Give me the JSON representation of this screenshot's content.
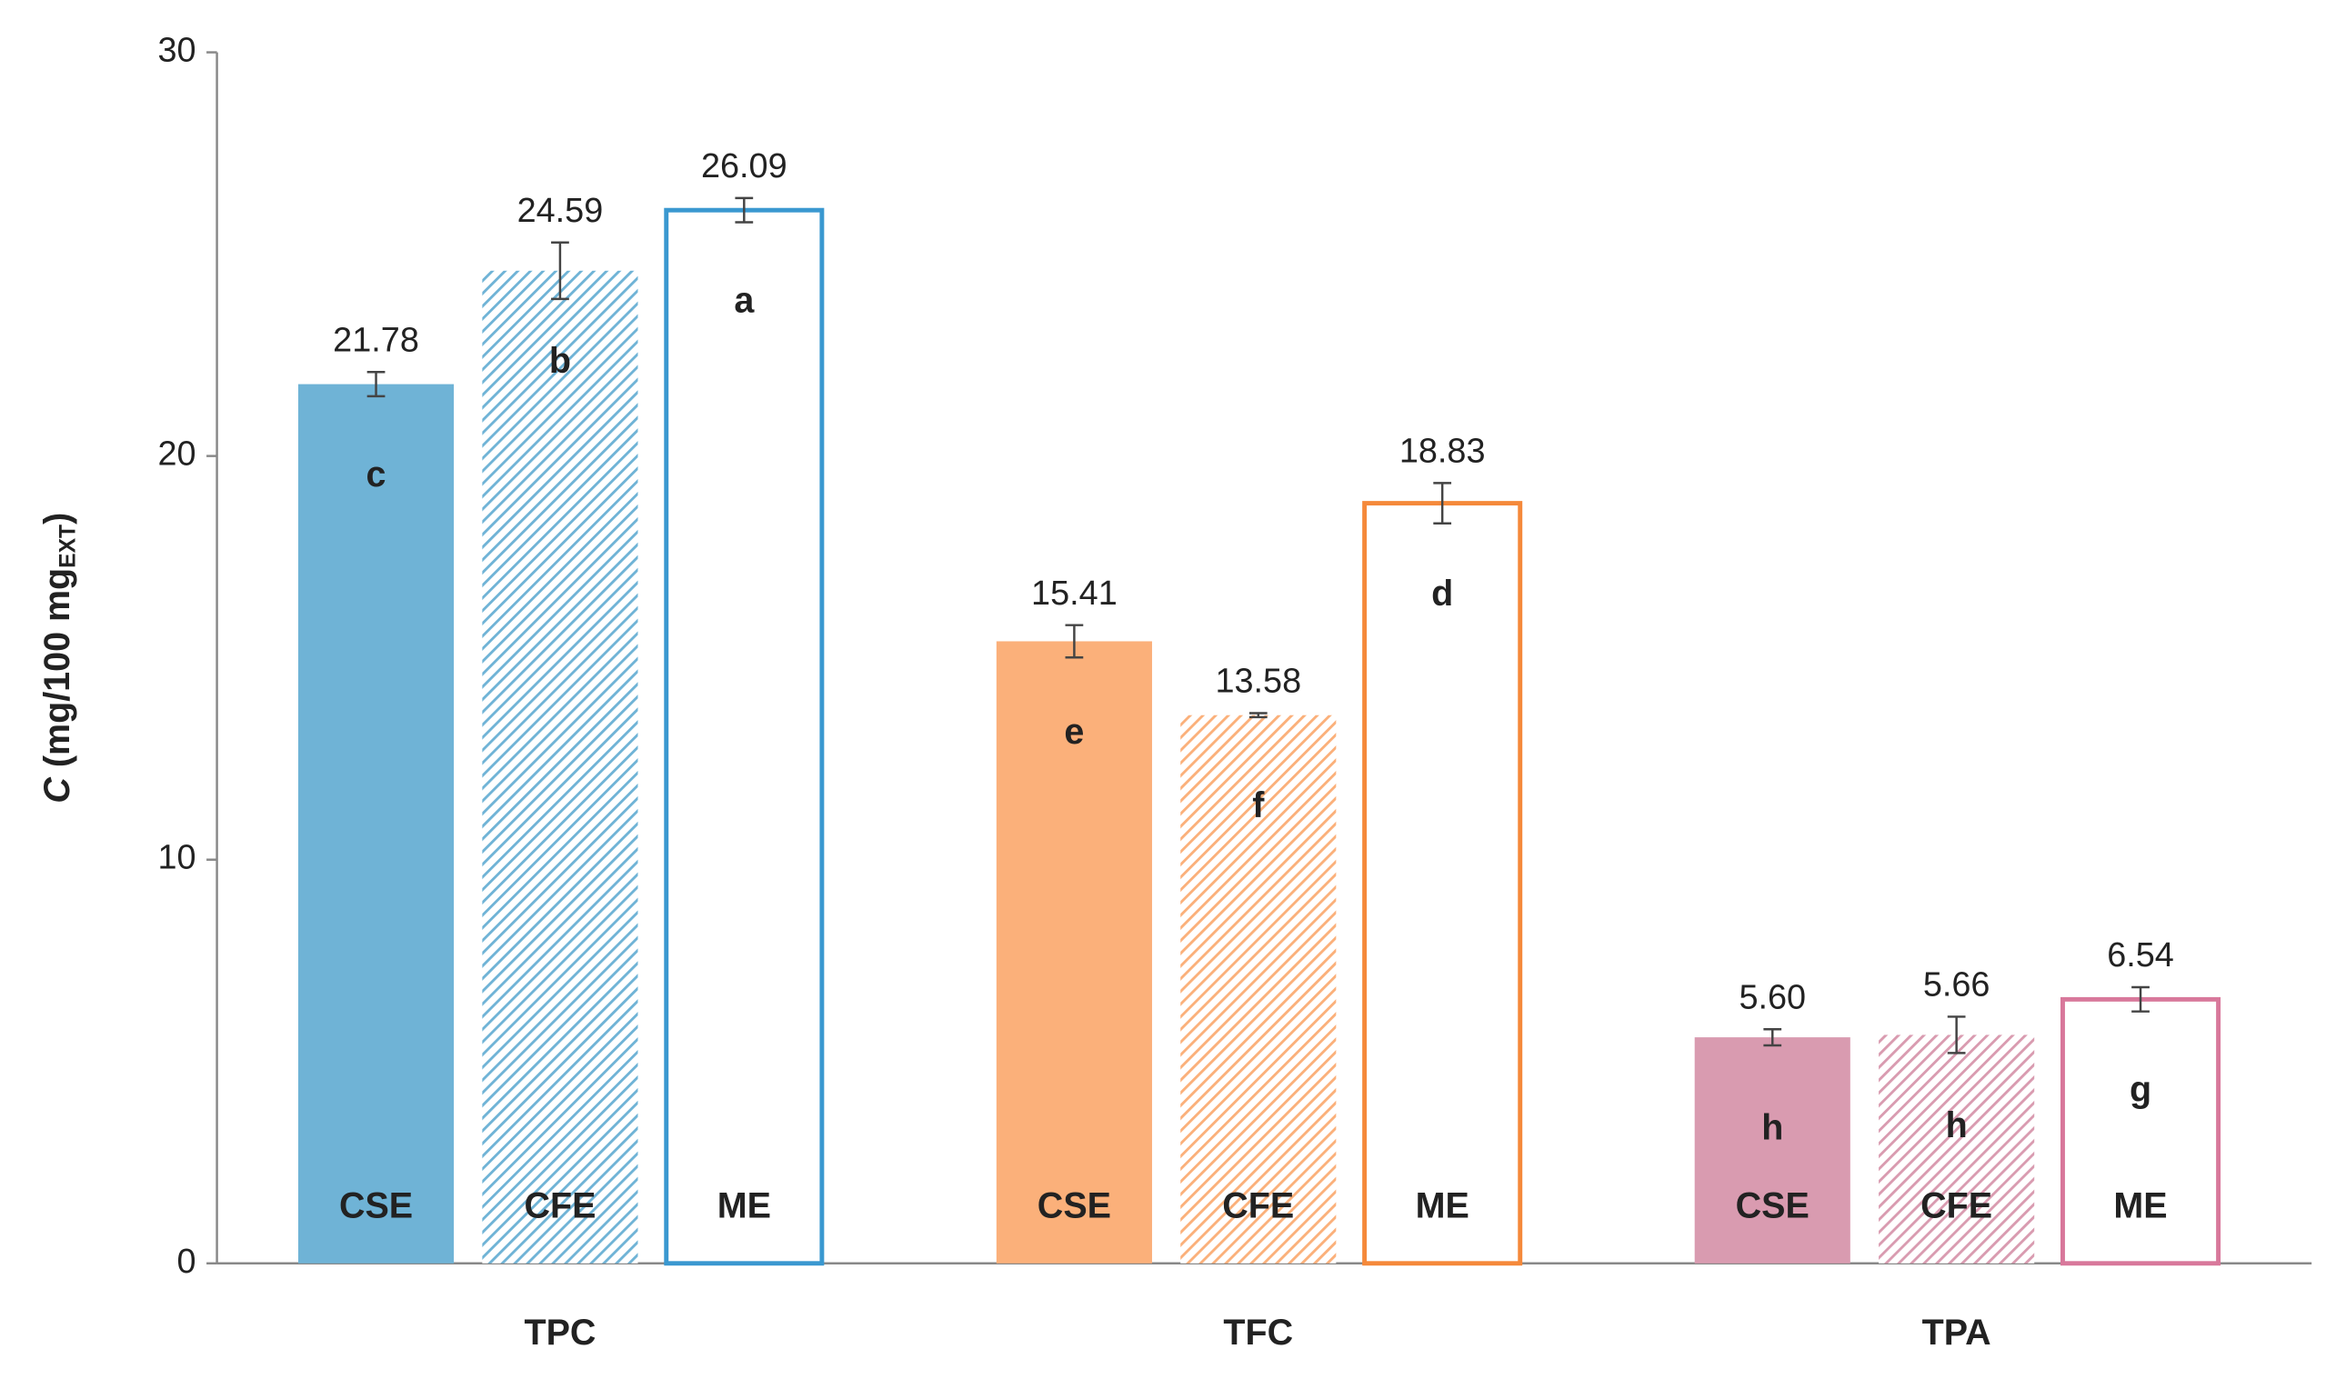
{
  "chart_data": {
    "type": "bar",
    "categories": [
      "TPC",
      "TFC",
      "TPA"
    ],
    "group_colors": [
      {
        "fill": "#6fb3d6",
        "edge": "#3a98d0"
      },
      {
        "fill": "#fbb07a",
        "edge": "#f5893a"
      },
      {
        "fill": "#d99bb0",
        "edge": "#d8789b"
      }
    ],
    "series": [
      {
        "name": "CSE",
        "style": "solid",
        "values": [
          21.78,
          15.41,
          5.6
        ],
        "value_labels": [
          "21.78",
          "15.41",
          "5.60"
        ],
        "errors": [
          0.3,
          0.4,
          0.2
        ],
        "letters": [
          "c",
          "e",
          "h"
        ]
      },
      {
        "name": "CFE",
        "style": "hatched",
        "values": [
          24.59,
          13.58,
          5.66
        ],
        "value_labels": [
          "24.59",
          "13.58",
          "5.66"
        ],
        "errors": [
          0.7,
          0.05,
          0.45
        ],
        "letters": [
          "b",
          "f",
          "h"
        ]
      },
      {
        "name": "ME",
        "style": "outline",
        "values": [
          26.09,
          18.83,
          6.54
        ],
        "value_labels": [
          "26.09",
          "18.83",
          "6.54"
        ],
        "errors": [
          0.3,
          0.5,
          0.3
        ],
        "letters": [
          "a",
          "d",
          "g"
        ]
      }
    ],
    "y_label": {
      "symbol": "C",
      "unit": "(mg/100 mg",
      "subscript": "EXT",
      "close": ")"
    },
    "ylim": [
      0,
      30
    ],
    "yticks": [
      0,
      10,
      20,
      30
    ],
    "grid": false
  }
}
